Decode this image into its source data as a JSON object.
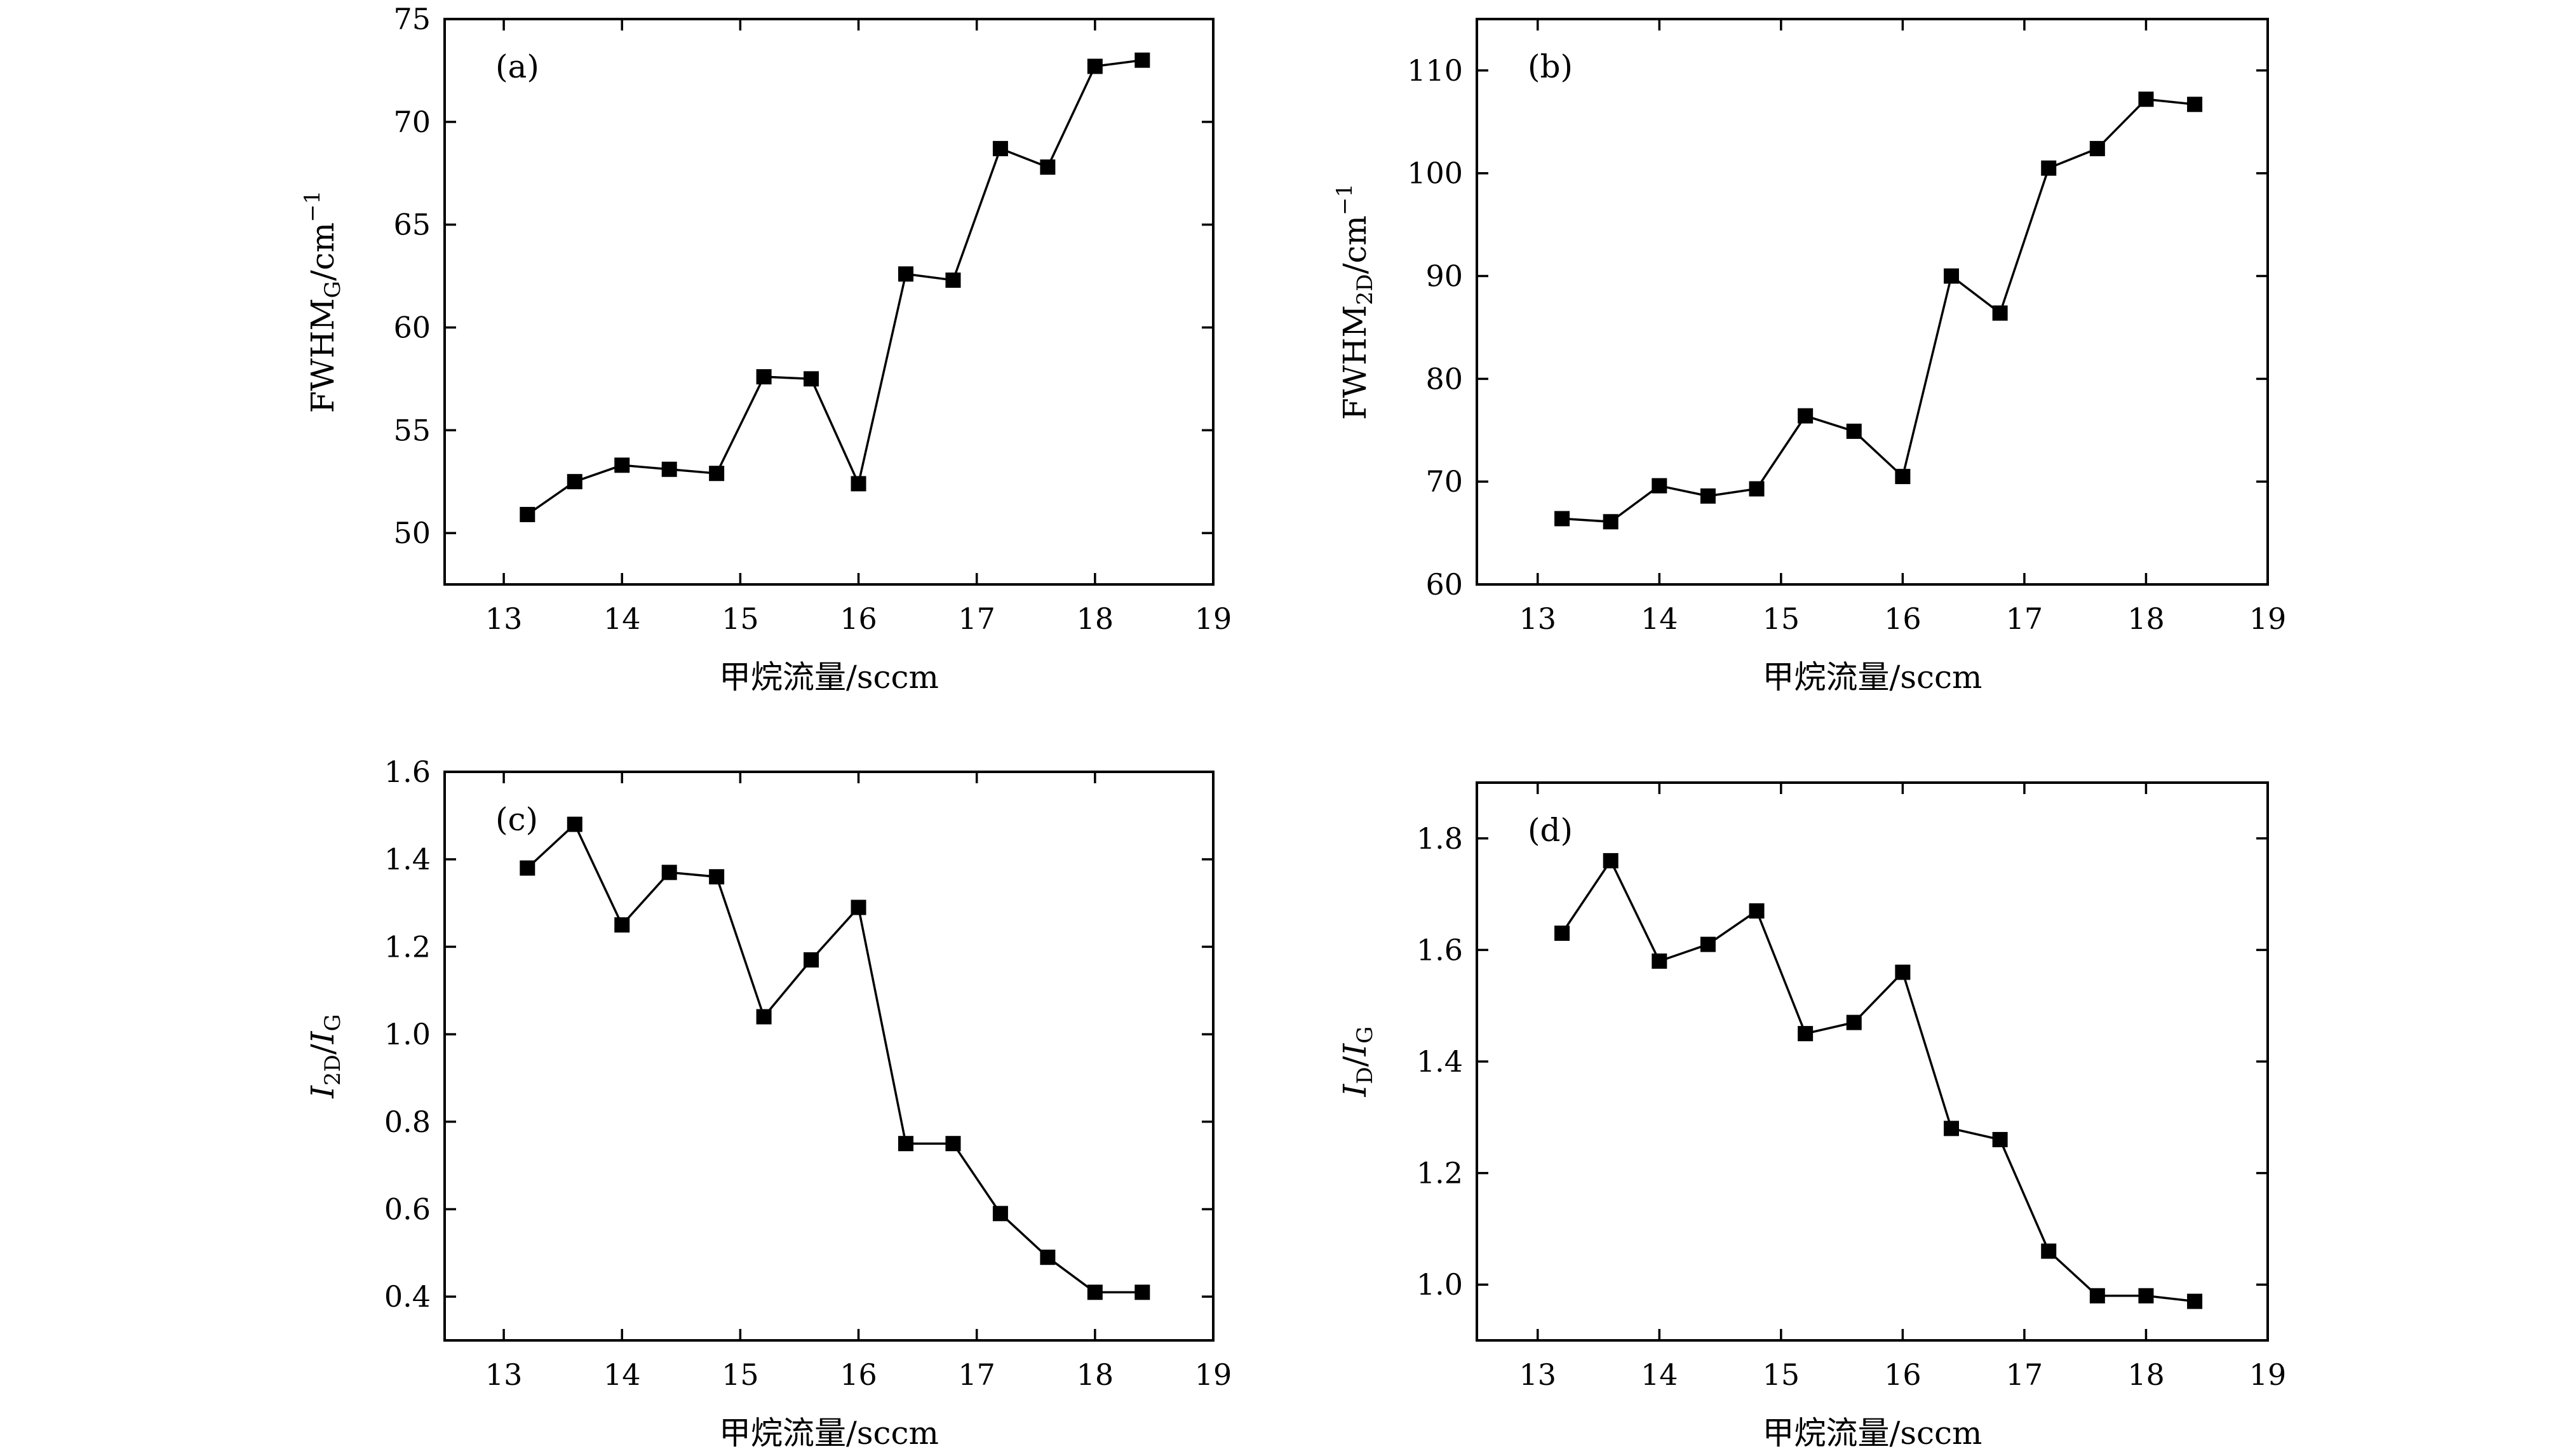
{
  "chart_data": [
    {
      "type": "line",
      "panel_label": "(a)",
      "xlabel": "甲烷流量/sccm",
      "ylabel": {
        "parts": [
          {
            "t": "FWHM"
          },
          {
            "t": "G",
            "sub": true
          },
          {
            "t": "/cm"
          },
          {
            "t": "−1",
            "sup": true
          }
        ]
      },
      "xlim": [
        12.5,
        19
      ],
      "ylim": [
        47.5,
        75
      ],
      "xticks": [
        "13",
        "14",
        "15",
        "16",
        "17",
        "18",
        "19"
      ],
      "yticks": [
        "50",
        "55",
        "60",
        "65",
        "70",
        "75"
      ],
      "marker": "square",
      "color": "#000000",
      "x": [
        13.2,
        13.6,
        14.0,
        14.4,
        14.8,
        15.2,
        15.6,
        16.0,
        16.4,
        16.8,
        17.2,
        17.6,
        18.0,
        18.4
      ],
      "y": [
        50.9,
        52.5,
        53.3,
        53.1,
        52.9,
        57.6,
        57.5,
        52.4,
        62.6,
        62.3,
        68.7,
        67.8,
        72.7,
        73.0
      ]
    },
    {
      "type": "line",
      "panel_label": "(b)",
      "xlabel": "甲烷流量/sccm",
      "ylabel": {
        "parts": [
          {
            "t": "FWHM"
          },
          {
            "t": "2D",
            "sub": true
          },
          {
            "t": "/cm"
          },
          {
            "t": "−1",
            "sup": true
          }
        ]
      },
      "xlim": [
        12.5,
        19
      ],
      "ylim": [
        60,
        115
      ],
      "xticks": [
        "13",
        "14",
        "15",
        "16",
        "17",
        "18",
        "19"
      ],
      "yticks": [
        "60",
        "70",
        "80",
        "90",
        "100",
        "110"
      ],
      "marker": "square",
      "color": "#000000",
      "x": [
        13.2,
        13.6,
        14.0,
        14.4,
        14.8,
        15.2,
        15.6,
        16.0,
        16.4,
        16.8,
        17.2,
        17.6,
        18.0,
        18.4
      ],
      "y": [
        66.4,
        66.1,
        69.6,
        68.6,
        69.3,
        76.4,
        74.9,
        70.5,
        90.0,
        86.4,
        100.5,
        102.4,
        107.2,
        106.7
      ]
    },
    {
      "type": "line",
      "panel_label": "(c)",
      "xlabel": "甲烷流量/sccm",
      "ylabel": {
        "parts": [
          {
            "t": "I",
            "italic": true
          },
          {
            "t": "2D",
            "sub": true
          },
          {
            "t": "/"
          },
          {
            "t": "I",
            "italic": true
          },
          {
            "t": "G",
            "sub": true
          }
        ]
      },
      "xlim": [
        12.5,
        19
      ],
      "ylim": [
        0.3,
        1.6
      ],
      "xticks": [
        "13",
        "14",
        "15",
        "16",
        "17",
        "18",
        "19"
      ],
      "yticks": [
        "0.4",
        "0.6",
        "0.8",
        "1.0",
        "1.2",
        "1.4",
        "1.6"
      ],
      "marker": "square",
      "color": "#000000",
      "x": [
        13.2,
        13.6,
        14.0,
        14.4,
        14.8,
        15.2,
        15.6,
        16.0,
        16.4,
        16.8,
        17.2,
        17.6,
        18.0,
        18.4
      ],
      "y": [
        1.38,
        1.48,
        1.25,
        1.37,
        1.36,
        1.04,
        1.17,
        1.29,
        0.75,
        0.75,
        0.59,
        0.49,
        0.41,
        0.41
      ]
    },
    {
      "type": "line",
      "panel_label": "(d)",
      "xlabel": "甲烷流量/sccm",
      "ylabel": {
        "parts": [
          {
            "t": "I",
            "italic": true
          },
          {
            "t": "D",
            "sub": true
          },
          {
            "t": "/"
          },
          {
            "t": "I",
            "italic": true
          },
          {
            "t": "G",
            "sub": true
          }
        ]
      },
      "xlim": [
        12.5,
        19
      ],
      "ylim": [
        0.9,
        1.9
      ],
      "xticks": [
        "13",
        "14",
        "15",
        "16",
        "17",
        "18",
        "19"
      ],
      "yticks": [
        "1.0",
        "1.2",
        "1.4",
        "1.6",
        "1.8"
      ],
      "marker": "square",
      "color": "#000000",
      "x": [
        13.2,
        13.6,
        14.0,
        14.4,
        14.8,
        15.2,
        15.6,
        16.0,
        16.4,
        16.8,
        17.2,
        17.6,
        18.0,
        18.4
      ],
      "y": [
        1.63,
        1.76,
        1.58,
        1.61,
        1.67,
        1.45,
        1.47,
        1.56,
        1.28,
        1.26,
        1.06,
        0.98,
        0.98,
        0.97
      ]
    }
  ]
}
